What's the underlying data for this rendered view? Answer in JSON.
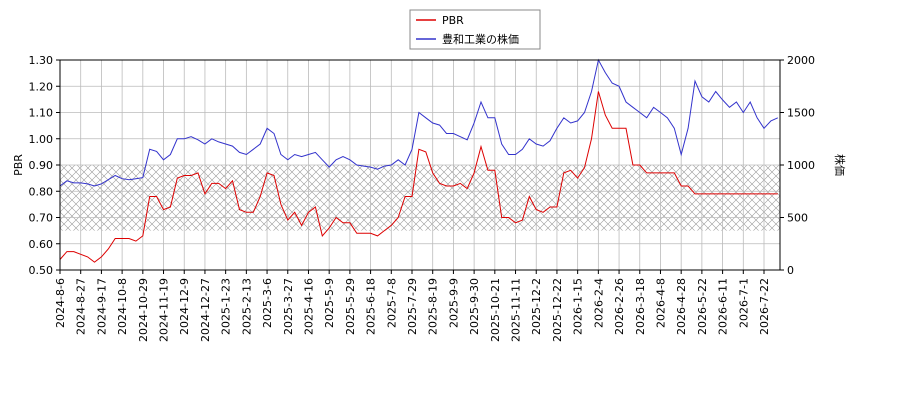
{
  "chart_data": {
    "type": "line",
    "categories": [
      "2024-8-6",
      null,
      null,
      "2024-8-27",
      null,
      null,
      "2024-9-17",
      null,
      null,
      "2024-10-8",
      null,
      null,
      "2024-10-29",
      null,
      null,
      "2024-11-19",
      null,
      null,
      "2024-12-9",
      null,
      null,
      "2024-12-27",
      null,
      null,
      "2025-1-23",
      null,
      null,
      "2025-2-13",
      null,
      null,
      "2025-3-6",
      null,
      null,
      "2025-3-27",
      null,
      null,
      "2025-4-16",
      null,
      null,
      "2025-5-9",
      null,
      null,
      "2025-5-29",
      null,
      null,
      "2025-6-18",
      null,
      null,
      "2025-7-8",
      null,
      null,
      "2025-7-29",
      null,
      null,
      "2025-8-19",
      null,
      null,
      "2025-9-9",
      null,
      null,
      "2025-9-30",
      null,
      null,
      "2025-10-21",
      null,
      null,
      "2025-11-11",
      null,
      null,
      "2025-12-2",
      null,
      null,
      "2025-12-22",
      null,
      null,
      "2026-1-15",
      null,
      null,
      "2026-2-4",
      null,
      null,
      "2026-2-26",
      null,
      null,
      "2026-3-18",
      null,
      null,
      "2026-4-8",
      null,
      null,
      "2026-4-28",
      null,
      null,
      "2026-5-22",
      null,
      null,
      "2026-6-11",
      null,
      null,
      "2026-7-1",
      null,
      null,
      "2026-7-22",
      null,
      null
    ],
    "series": [
      {
        "name": "PBR",
        "color": "#dd0000",
        "values": [
          0.54,
          0.57,
          0.57,
          0.56,
          0.55,
          0.53,
          0.55,
          0.58,
          0.62,
          0.62,
          0.62,
          0.61,
          0.63,
          0.78,
          0.78,
          0.73,
          0.74,
          0.85,
          0.86,
          0.86,
          0.87,
          0.79,
          0.83,
          0.83,
          0.81,
          0.84,
          0.73,
          0.72,
          0.72,
          0.78,
          0.87,
          0.86,
          0.75,
          0.69,
          0.72,
          0.67,
          0.72,
          0.74,
          0.63,
          0.66,
          0.7,
          0.68,
          0.68,
          0.64,
          0.64,
          0.64,
          0.63,
          0.65,
          0.67,
          0.7,
          0.78,
          0.78,
          0.96,
          0.95,
          0.87,
          0.83,
          0.82,
          0.82,
          0.83,
          0.81,
          0.87,
          0.97,
          0.88,
          0.88,
          0.7,
          0.7,
          0.68,
          0.69,
          0.78,
          0.73,
          0.72,
          0.74,
          0.74,
          0.87,
          0.88,
          0.85,
          0.89,
          1.0,
          1.18,
          1.09,
          1.04,
          1.04,
          1.04,
          0.9,
          0.9,
          0.87,
          0.87,
          0.87,
          0.87,
          0.87,
          0.82,
          0.82,
          0.79,
          0.79,
          0.79,
          0.79,
          0.79,
          0.79,
          0.79,
          0.79,
          0.79,
          0.79,
          0.79,
          0.79,
          0.79
        ]
      },
      {
        "name": "豊和工業の株価",
        "color": "#3333cc",
        "axis": "y2",
        "values": [
          800,
          850,
          830,
          830,
          820,
          800,
          820,
          860,
          900,
          870,
          860,
          870,
          880,
          1150,
          1130,
          1050,
          1100,
          1250,
          1250,
          1270,
          1240,
          1200,
          1250,
          1220,
          1200,
          1180,
          1120,
          1100,
          1150,
          1200,
          1350,
          1300,
          1100,
          1050,
          1100,
          1080,
          1100,
          1120,
          1050,
          980,
          1050,
          1080,
          1050,
          1000,
          990,
          980,
          960,
          990,
          1000,
          1050,
          1000,
          1150,
          1500,
          1450,
          1400,
          1380,
          1300,
          1300,
          1270,
          1240,
          1400,
          1600,
          1450,
          1450,
          1200,
          1100,
          1100,
          1150,
          1250,
          1200,
          1180,
          1230,
          1350,
          1450,
          1400,
          1420,
          1500,
          1700,
          2000,
          1880,
          1780,
          1750,
          1600,
          1550,
          1500,
          1450,
          1550,
          1500,
          1450,
          1350,
          1100,
          1350,
          1800,
          1650,
          1600,
          1700,
          1620,
          1550,
          1600,
          1500,
          1600,
          1450,
          1350,
          1420,
          1450
        ]
      }
    ],
    "ylabel": "PBR",
    "y2label": "株価",
    "ylim": [
      0.5,
      1.3
    ],
    "yticks": [
      {
        "value": 0.5,
        "label": "0.50"
      },
      {
        "value": 0.6,
        "label": "0.60"
      },
      {
        "value": 0.7,
        "label": "0.70"
      },
      {
        "value": 0.8,
        "label": "0.80"
      },
      {
        "value": 0.9,
        "label": "0.90"
      },
      {
        "value": 1.0,
        "label": "1.00"
      },
      {
        "value": 1.1,
        "label": "1.10"
      },
      {
        "value": 1.2,
        "label": "1.20"
      },
      {
        "value": 1.3,
        "label": "1.30"
      }
    ],
    "y2lim": [
      0,
      2000
    ],
    "y2ticks": [
      0,
      500,
      1000,
      1500,
      2000
    ],
    "band": [
      0.65,
      0.9
    ],
    "grid": true
  }
}
